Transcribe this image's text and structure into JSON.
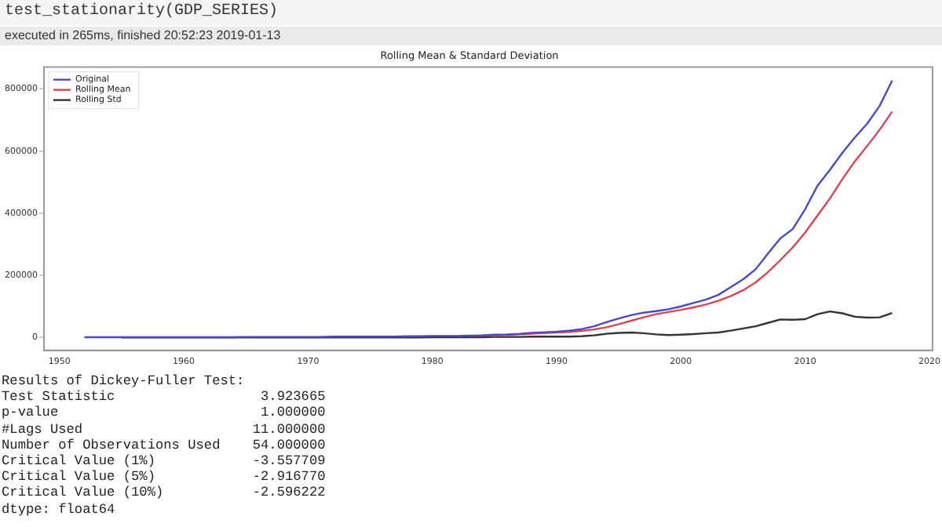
{
  "chart_data": {
    "type": "line",
    "title": "Rolling Mean & Standard Deviation",
    "xlim": [
      1948.75,
      2020.25
    ],
    "xticks": [
      1950,
      1960,
      1970,
      1980,
      1990,
      2000,
      2010,
      2020
    ],
    "ylim": [
      -41450,
      870400
    ],
    "yticks": [
      0,
      200000,
      400000,
      600000,
      800000
    ],
    "grid": false,
    "legend": "top left",
    "marker": "none",
    "line_style": "solid",
    "series": [
      {
        "name": "Original",
        "color": "#4a4ac0",
        "x": [
          1952,
          1953,
          1954,
          1955,
          1956,
          1957,
          1958,
          1959,
          1960,
          1961,
          1962,
          1963,
          1964,
          1965,
          1966,
          1967,
          1968,
          1969,
          1970,
          1971,
          1972,
          1973,
          1974,
          1975,
          1976,
          1977,
          1978,
          1979,
          1980,
          1981,
          1982,
          1983,
          1984,
          1985,
          1986,
          1987,
          1988,
          1989,
          1990,
          1991,
          1992,
          1993,
          1994,
          1995,
          1996,
          1997,
          1998,
          1999,
          2000,
          2001,
          2002,
          2003,
          2004,
          2005,
          2006,
          2007,
          2008,
          2009,
          2010,
          2011,
          2012,
          2013,
          2014,
          2015,
          2016,
          2017
        ],
        "values": [
          1000,
          1000,
          1000,
          1000,
          1000,
          1000,
          1000,
          1000,
          1000,
          1000,
          1000,
          1000,
          1000,
          2000,
          2000,
          2000,
          2000,
          2000,
          2000,
          2000,
          3000,
          3000,
          3000,
          3000,
          3000,
          3000,
          4000,
          4000,
          5000,
          5000,
          5000,
          6000,
          7000,
          9000,
          10000,
          12000,
          15000,
          17000,
          19000,
          22000,
          27000,
          36000,
          49000,
          61000,
          72000,
          80000,
          85000,
          91000,
          100000,
          111000,
          122000,
          137000,
          162000,
          187000,
          219000,
          270000,
          319000,
          349000,
          413000,
          489000,
          540000,
          595000,
          644000,
          689000,
          746000,
          827000
        ]
      },
      {
        "name": "Rolling Mean",
        "color": "#d04858",
        "x": [
          1983,
          1984,
          1985,
          1986,
          1987,
          1988,
          1989,
          1990,
          1991,
          1992,
          1993,
          1994,
          1995,
          1996,
          1997,
          1998,
          1999,
          2000,
          2001,
          2002,
          2003,
          2004,
          2005,
          2006,
          2007,
          2008,
          2009,
          2010,
          2011,
          2012,
          2013,
          2014,
          2015,
          2016,
          2017
        ],
        "values": [
          5000,
          6000,
          7000,
          8000,
          10000,
          12000,
          14000,
          16000,
          18000,
          21000,
          26000,
          33000,
          43000,
          54000,
          65000,
          75000,
          82000,
          89000,
          97000,
          106000,
          118000,
          133000,
          152000,
          177000,
          210000,
          249000,
          290000,
          338000,
          393000,
          448000,
          510000,
          567000,
          617000,
          669000,
          727000
        ]
      },
      {
        "name": "Rolling Std",
        "color": "#333333",
        "x": [
          1955,
          1956,
          1957,
          1958,
          1959,
          1960,
          1961,
          1962,
          1963,
          1964,
          1965,
          1966,
          1967,
          1968,
          1969,
          1970,
          1971,
          1972,
          1973,
          1974,
          1975,
          1976,
          1977,
          1978,
          1979,
          1980,
          1981,
          1982,
          1983,
          1984,
          1985,
          1986,
          1987,
          1988,
          1989,
          1990,
          1991,
          1992,
          1993,
          1994,
          1995,
          1996,
          1997,
          1998,
          1999,
          2000,
          2001,
          2002,
          2003,
          2004,
          2005,
          2006,
          2007,
          2008,
          2009,
          2010,
          2011,
          2012,
          2013,
          2014,
          2015,
          2016,
          2017
        ],
        "values": [
          0,
          0,
          0,
          0,
          0,
          0,
          0,
          0,
          0,
          0,
          0,
          0,
          0,
          0,
          0,
          0,
          0,
          0,
          0,
          0,
          0,
          0,
          0,
          0,
          0,
          1000,
          1000,
          1000,
          1000,
          1000,
          2000,
          2000,
          2000,
          3000,
          3000,
          3000,
          3000,
          4000,
          7000,
          12000,
          15000,
          16000,
          14000,
          10000,
          8000,
          9000,
          11000,
          14000,
          16000,
          22000,
          29000,
          36000,
          47000,
          58000,
          57000,
          59000,
          75000,
          84000,
          78000,
          67000,
          64000,
          65000,
          79000
        ]
      }
    ],
    "annotations": [
      "test_stationarity(GDP_SERIES)",
      "executed in 265ms, finished 20:52:23 2019-01-13",
      "Results of Dickey-Fuller Test:",
      "Test Statistic                  3.923665",
      "p-value                         1.000000",
      "#Lags Used                     11.000000",
      "Number of Observations Used    54.000000",
      "Critical Value (1%)            -3.557709",
      "Critical Value (5%)            -2.916770",
      "Critical Value (10%)           -2.596222",
      "dtype: float64"
    ]
  }
}
